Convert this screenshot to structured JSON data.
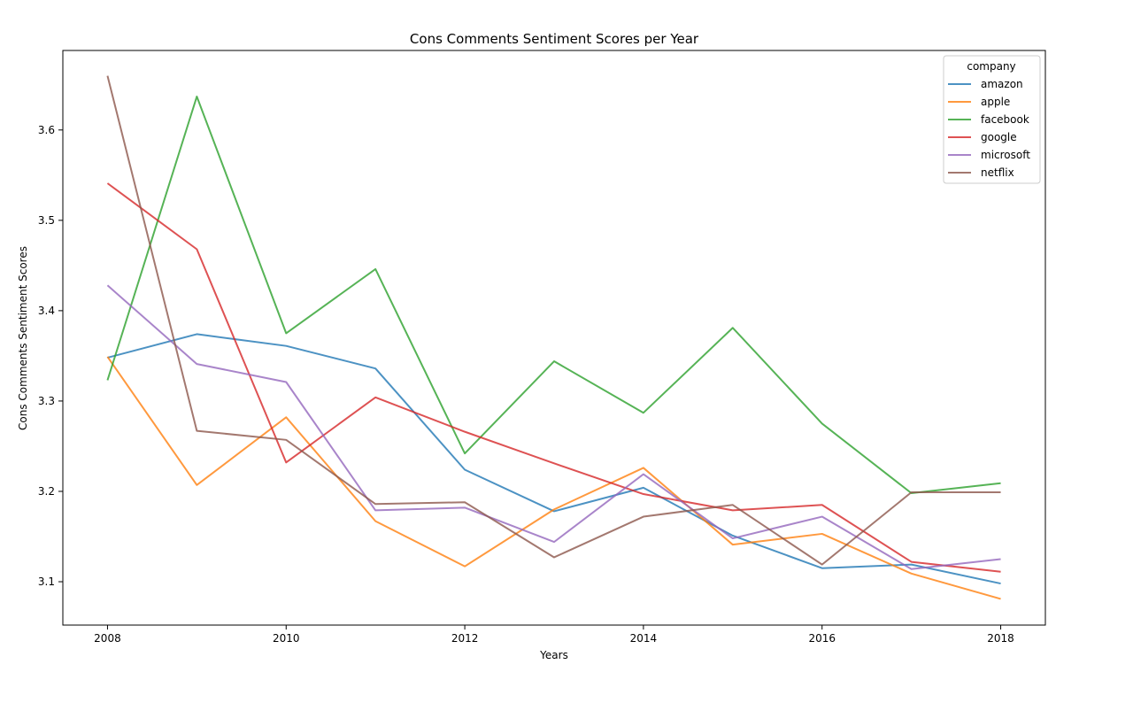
{
  "chart_data": {
    "type": "line",
    "title": "Cons Comments Sentiment Scores per Year",
    "xlabel": "Years",
    "ylabel": "Cons Comments Sentiment Scores",
    "xlim": [
      2007.5,
      2018.5
    ],
    "ylim": [
      3.052,
      3.688
    ],
    "x_ticks": [
      "2008",
      "2010",
      "2012",
      "2014",
      "2016",
      "2018"
    ],
    "y_ticks": [
      "3.1",
      "3.2",
      "3.3",
      "3.4",
      "3.5",
      "3.6"
    ],
    "legend_title": "company",
    "legend_position": "top-right",
    "grid": false,
    "x": [
      2008,
      2009,
      2010,
      2011,
      2012,
      2013,
      2014,
      2015,
      2016,
      2017,
      2018
    ],
    "series": [
      {
        "name": "amazon",
        "color": "#1f77b4",
        "values": [
          3.348,
          3.374,
          3.361,
          3.336,
          3.224,
          3.178,
          3.204,
          3.151,
          3.115,
          3.119,
          3.098
        ]
      },
      {
        "name": "apple",
        "color": "#ff7f0e",
        "values": [
          3.349,
          3.207,
          3.282,
          3.167,
          3.117,
          3.18,
          3.226,
          3.141,
          3.153,
          3.109,
          3.081
        ]
      },
      {
        "name": "facebook",
        "color": "#2ca02c",
        "values": [
          3.323,
          3.637,
          3.375,
          3.446,
          3.242,
          3.344,
          3.287,
          3.381,
          3.275,
          3.198,
          3.209
        ]
      },
      {
        "name": "google",
        "color": "#d62728",
        "values": [
          3.541,
          3.468,
          3.232,
          3.304,
          3.266,
          3.231,
          3.197,
          3.179,
          3.185,
          3.122,
          3.111
        ]
      },
      {
        "name": "microsoft",
        "color": "#9467bd",
        "values": [
          3.428,
          3.341,
          3.321,
          3.179,
          3.182,
          3.144,
          3.219,
          3.148,
          3.172,
          3.114,
          3.125
        ]
      },
      {
        "name": "netflix",
        "color": "#8c564b",
        "values": [
          3.66,
          3.267,
          3.257,
          3.186,
          3.188,
          3.127,
          3.172,
          3.185,
          3.119,
          3.199,
          3.199
        ]
      }
    ]
  }
}
